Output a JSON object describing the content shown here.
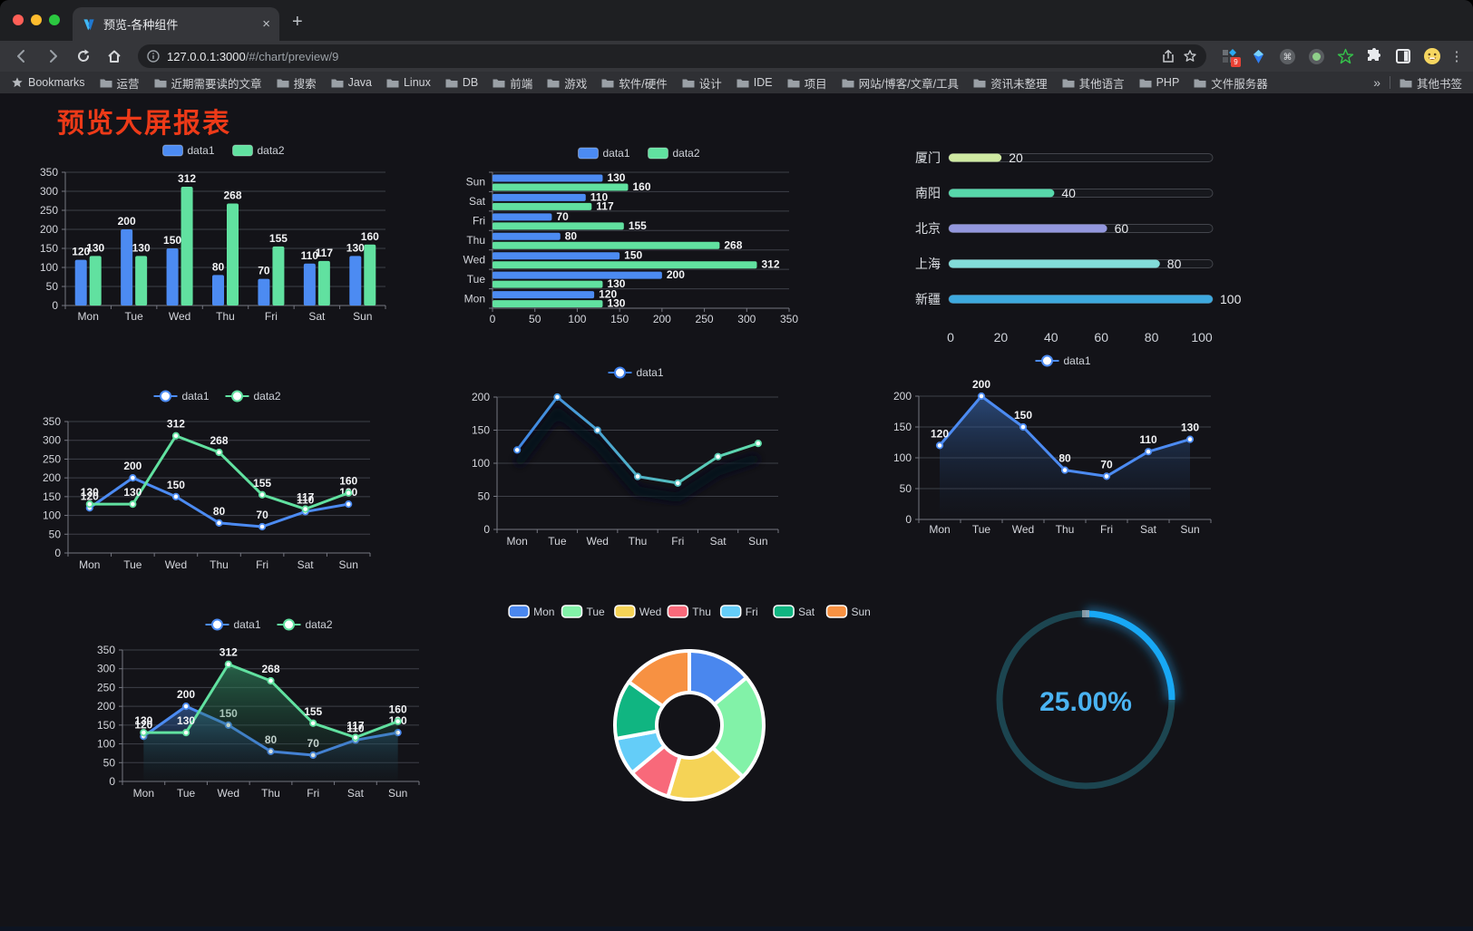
{
  "browser": {
    "tab": {
      "title": "预览-各种组件",
      "close_icon": "×",
      "new_tab_icon": "+"
    },
    "url": {
      "host": "127.0.0.1:3000",
      "path": "/#/chart/preview/9"
    },
    "extensions_badge": "9",
    "bookmarks": {
      "label": "Bookmarks",
      "folders": [
        "运营",
        "近期需要读的文章",
        "搜索",
        "Java",
        "Linux",
        "DB",
        "前端",
        "游戏",
        "软件/硬件",
        "设计",
        "IDE",
        "项目",
        "网站/博客/文章/工具",
        "资讯未整理",
        "其他语言",
        "PHP",
        "文件服务器"
      ],
      "overflow_chevron": "»",
      "other_label": "其他书签"
    }
  },
  "page": {
    "title": "预览大屏报表",
    "title_color": "#ed3a18"
  },
  "theme": {
    "background": "#131318",
    "grid": "#3e4048",
    "axis": "#757781",
    "tick_text": "#d4d6dc",
    "value_text": "#f2f3f5",
    "legend_text": "#ced2d9",
    "blue": "#4c8bf2",
    "green": "#61e1a0"
  },
  "chart_data": [
    {
      "id": "bar-vertical",
      "type": "bar",
      "orientation": "vertical",
      "categories": [
        "Mon",
        "Tue",
        "Wed",
        "Thu",
        "Fri",
        "Sat",
        "Sun"
      ],
      "series": [
        {
          "name": "data1",
          "color": "#4c8bf2",
          "values": [
            120,
            200,
            150,
            80,
            70,
            110,
            130
          ]
        },
        {
          "name": "data2",
          "color": "#61e1a0",
          "values": [
            130,
            130,
            312,
            268,
            155,
            117,
            160
          ]
        }
      ],
      "ylim": [
        0,
        350
      ],
      "ystep": 50,
      "value_labels": true,
      "legend_position": "top"
    },
    {
      "id": "bar-horizontal",
      "type": "bar",
      "orientation": "horizontal",
      "categories": [
        "Mon",
        "Tue",
        "Wed",
        "Thu",
        "Fri",
        "Sat",
        "Sun"
      ],
      "series": [
        {
          "name": "data1",
          "color": "#4c8bf2",
          "values": [
            120,
            200,
            150,
            80,
            70,
            110,
            130
          ]
        },
        {
          "name": "data2",
          "color": "#61e1a0",
          "values": [
            130,
            130,
            312,
            268,
            155,
            117,
            160
          ]
        }
      ],
      "xlim": [
        0,
        350
      ],
      "xstep": 50,
      "value_labels": true,
      "legend_position": "top"
    },
    {
      "id": "progress-bars",
      "type": "bar",
      "subtype": "progress",
      "rows": [
        {
          "label": "厦门",
          "value": 20,
          "color": "#cfe9a2"
        },
        {
          "label": "南阳",
          "value": 40,
          "color": "#57d8ab"
        },
        {
          "label": "北京",
          "value": 60,
          "color": "#9397dd"
        },
        {
          "label": "上海",
          "value": 80,
          "color": "#82dcd9"
        },
        {
          "label": "新疆",
          "value": 100,
          "color": "#3ea9de"
        }
      ],
      "xlim": [
        0,
        100
      ],
      "xticks": [
        0,
        20,
        40,
        60,
        80,
        100
      ]
    },
    {
      "id": "line-dual",
      "type": "line",
      "categories": [
        "Mon",
        "Tue",
        "Wed",
        "Thu",
        "Fri",
        "Sat",
        "Sun"
      ],
      "series": [
        {
          "name": "data1",
          "color": "#4c8bf2",
          "values": [
            120,
            200,
            150,
            80,
            70,
            110,
            130
          ]
        },
        {
          "name": "data2",
          "color": "#61e1a0",
          "values": [
            130,
            130,
            312,
            268,
            155,
            117,
            160
          ]
        }
      ],
      "ylim": [
        0,
        350
      ],
      "ystep": 50,
      "value_labels": true
    },
    {
      "id": "line-gradient",
      "type": "line",
      "categories": [
        "Mon",
        "Tue",
        "Wed",
        "Thu",
        "Fri",
        "Sat",
        "Sun"
      ],
      "series": [
        {
          "name": "data1",
          "gradient": [
            "#3d7eea",
            "#62e5a6"
          ],
          "values": [
            120,
            200,
            150,
            80,
            70,
            110,
            130
          ]
        }
      ],
      "ylim": [
        0,
        200
      ],
      "ystep": 50,
      "value_labels": false,
      "shadow": true
    },
    {
      "id": "line-area-blue",
      "type": "area",
      "categories": [
        "Mon",
        "Tue",
        "Wed",
        "Thu",
        "Fri",
        "Sat",
        "Sun"
      ],
      "series": [
        {
          "name": "data1",
          "color": "#4c8bf2",
          "area": [
            "rgba(58,108,182,0.60)",
            "rgba(20,40,70,0.03)"
          ],
          "values": [
            120,
            200,
            150,
            80,
            70,
            110,
            130
          ]
        }
      ],
      "ylim": [
        0,
        200
      ],
      "ystep": 50,
      "value_labels": true
    },
    {
      "id": "line-area-dual",
      "type": "area",
      "categories": [
        "Mon",
        "Tue",
        "Wed",
        "Thu",
        "Fri",
        "Sat",
        "Sun"
      ],
      "series": [
        {
          "name": "data1",
          "color": "#4c8bf2",
          "area": [
            "rgba(58,108,182,0.60)",
            "rgba(20,40,70,0.03)"
          ],
          "values": [
            120,
            200,
            150,
            80,
            70,
            110,
            130
          ]
        },
        {
          "name": "data2",
          "color": "#61e1a0",
          "area": [
            "rgba(52,150,104,0.60)",
            "rgba(20,60,45,0.03)"
          ],
          "values": [
            130,
            130,
            312,
            268,
            155,
            117,
            160
          ]
        }
      ],
      "ylim": [
        0,
        350
      ],
      "ystep": 50,
      "value_labels": true
    },
    {
      "id": "donut",
      "type": "pie",
      "items": [
        {
          "label": "Mon",
          "value": 120,
          "color": "#4a87ee"
        },
        {
          "label": "Tue",
          "value": 200,
          "color": "#82f2a8"
        },
        {
          "label": "Wed",
          "value": 150,
          "color": "#f5d356"
        },
        {
          "label": "Thu",
          "value": 80,
          "color": "#f8697a"
        },
        {
          "label": "Fri",
          "value": 70,
          "color": "#64cdf8"
        },
        {
          "label": "Sat",
          "value": 110,
          "color": "#10b581"
        },
        {
          "label": "Sun",
          "value": 130,
          "color": "#f79142"
        }
      ]
    },
    {
      "id": "gauge",
      "type": "gauge",
      "value": 25,
      "text": "25.00%",
      "arc_color": "#18a8f5",
      "track_color": "#1c4550",
      "text_color": "#4ab3f2"
    }
  ]
}
